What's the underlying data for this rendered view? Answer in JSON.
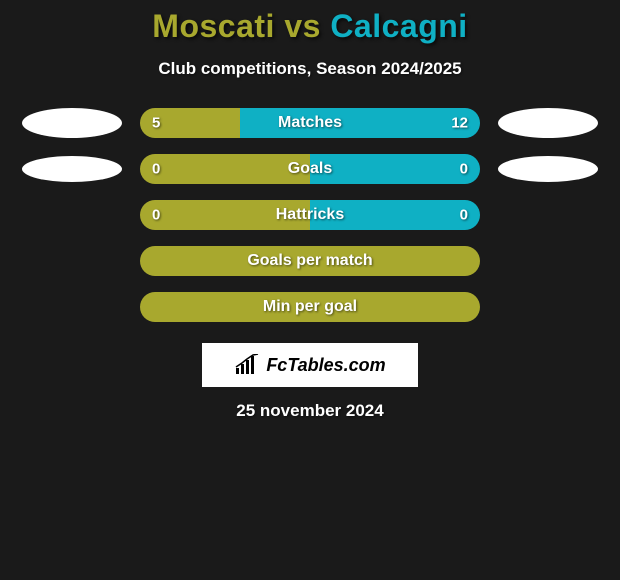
{
  "background_color": "#1a1a1a",
  "title": {
    "player1": "Moscati",
    "vs": " vs ",
    "player2": "Calcagni",
    "color_player1": "#a8a82e",
    "color_player2": "#0fb0c4",
    "fontsize": 32
  },
  "subtitle": "Club competitions, Season 2024/2025",
  "stat_bar_style": {
    "height": 30,
    "border_radius": 15,
    "label_fontsize": 16,
    "value_fontsize": 15,
    "label_color": "#ffffff"
  },
  "colors": {
    "left": "#a8a82e",
    "right": "#0fb0c4",
    "ellipse": "#ffffff"
  },
  "rows": [
    {
      "type": "split",
      "label": "Matches",
      "left_value": "5",
      "right_value": "12",
      "left_num": 5,
      "right_num": 12,
      "show_ellipses": true,
      "ellipse_narrow": false
    },
    {
      "type": "split",
      "label": "Goals",
      "left_value": "0",
      "right_value": "0",
      "left_num": 0,
      "right_num": 0,
      "show_ellipses": true,
      "ellipse_narrow": true
    },
    {
      "type": "split",
      "label": "Hattricks",
      "left_value": "0",
      "right_value": "0",
      "left_num": 0,
      "right_num": 0,
      "show_ellipses": false
    },
    {
      "type": "single",
      "label": "Goals per match",
      "fill_color": "#a8a82e"
    },
    {
      "type": "single",
      "label": "Min per goal",
      "fill_color": "#a8a82e"
    }
  ],
  "logo_text": "FcTables.com",
  "date": "25 november 2024"
}
